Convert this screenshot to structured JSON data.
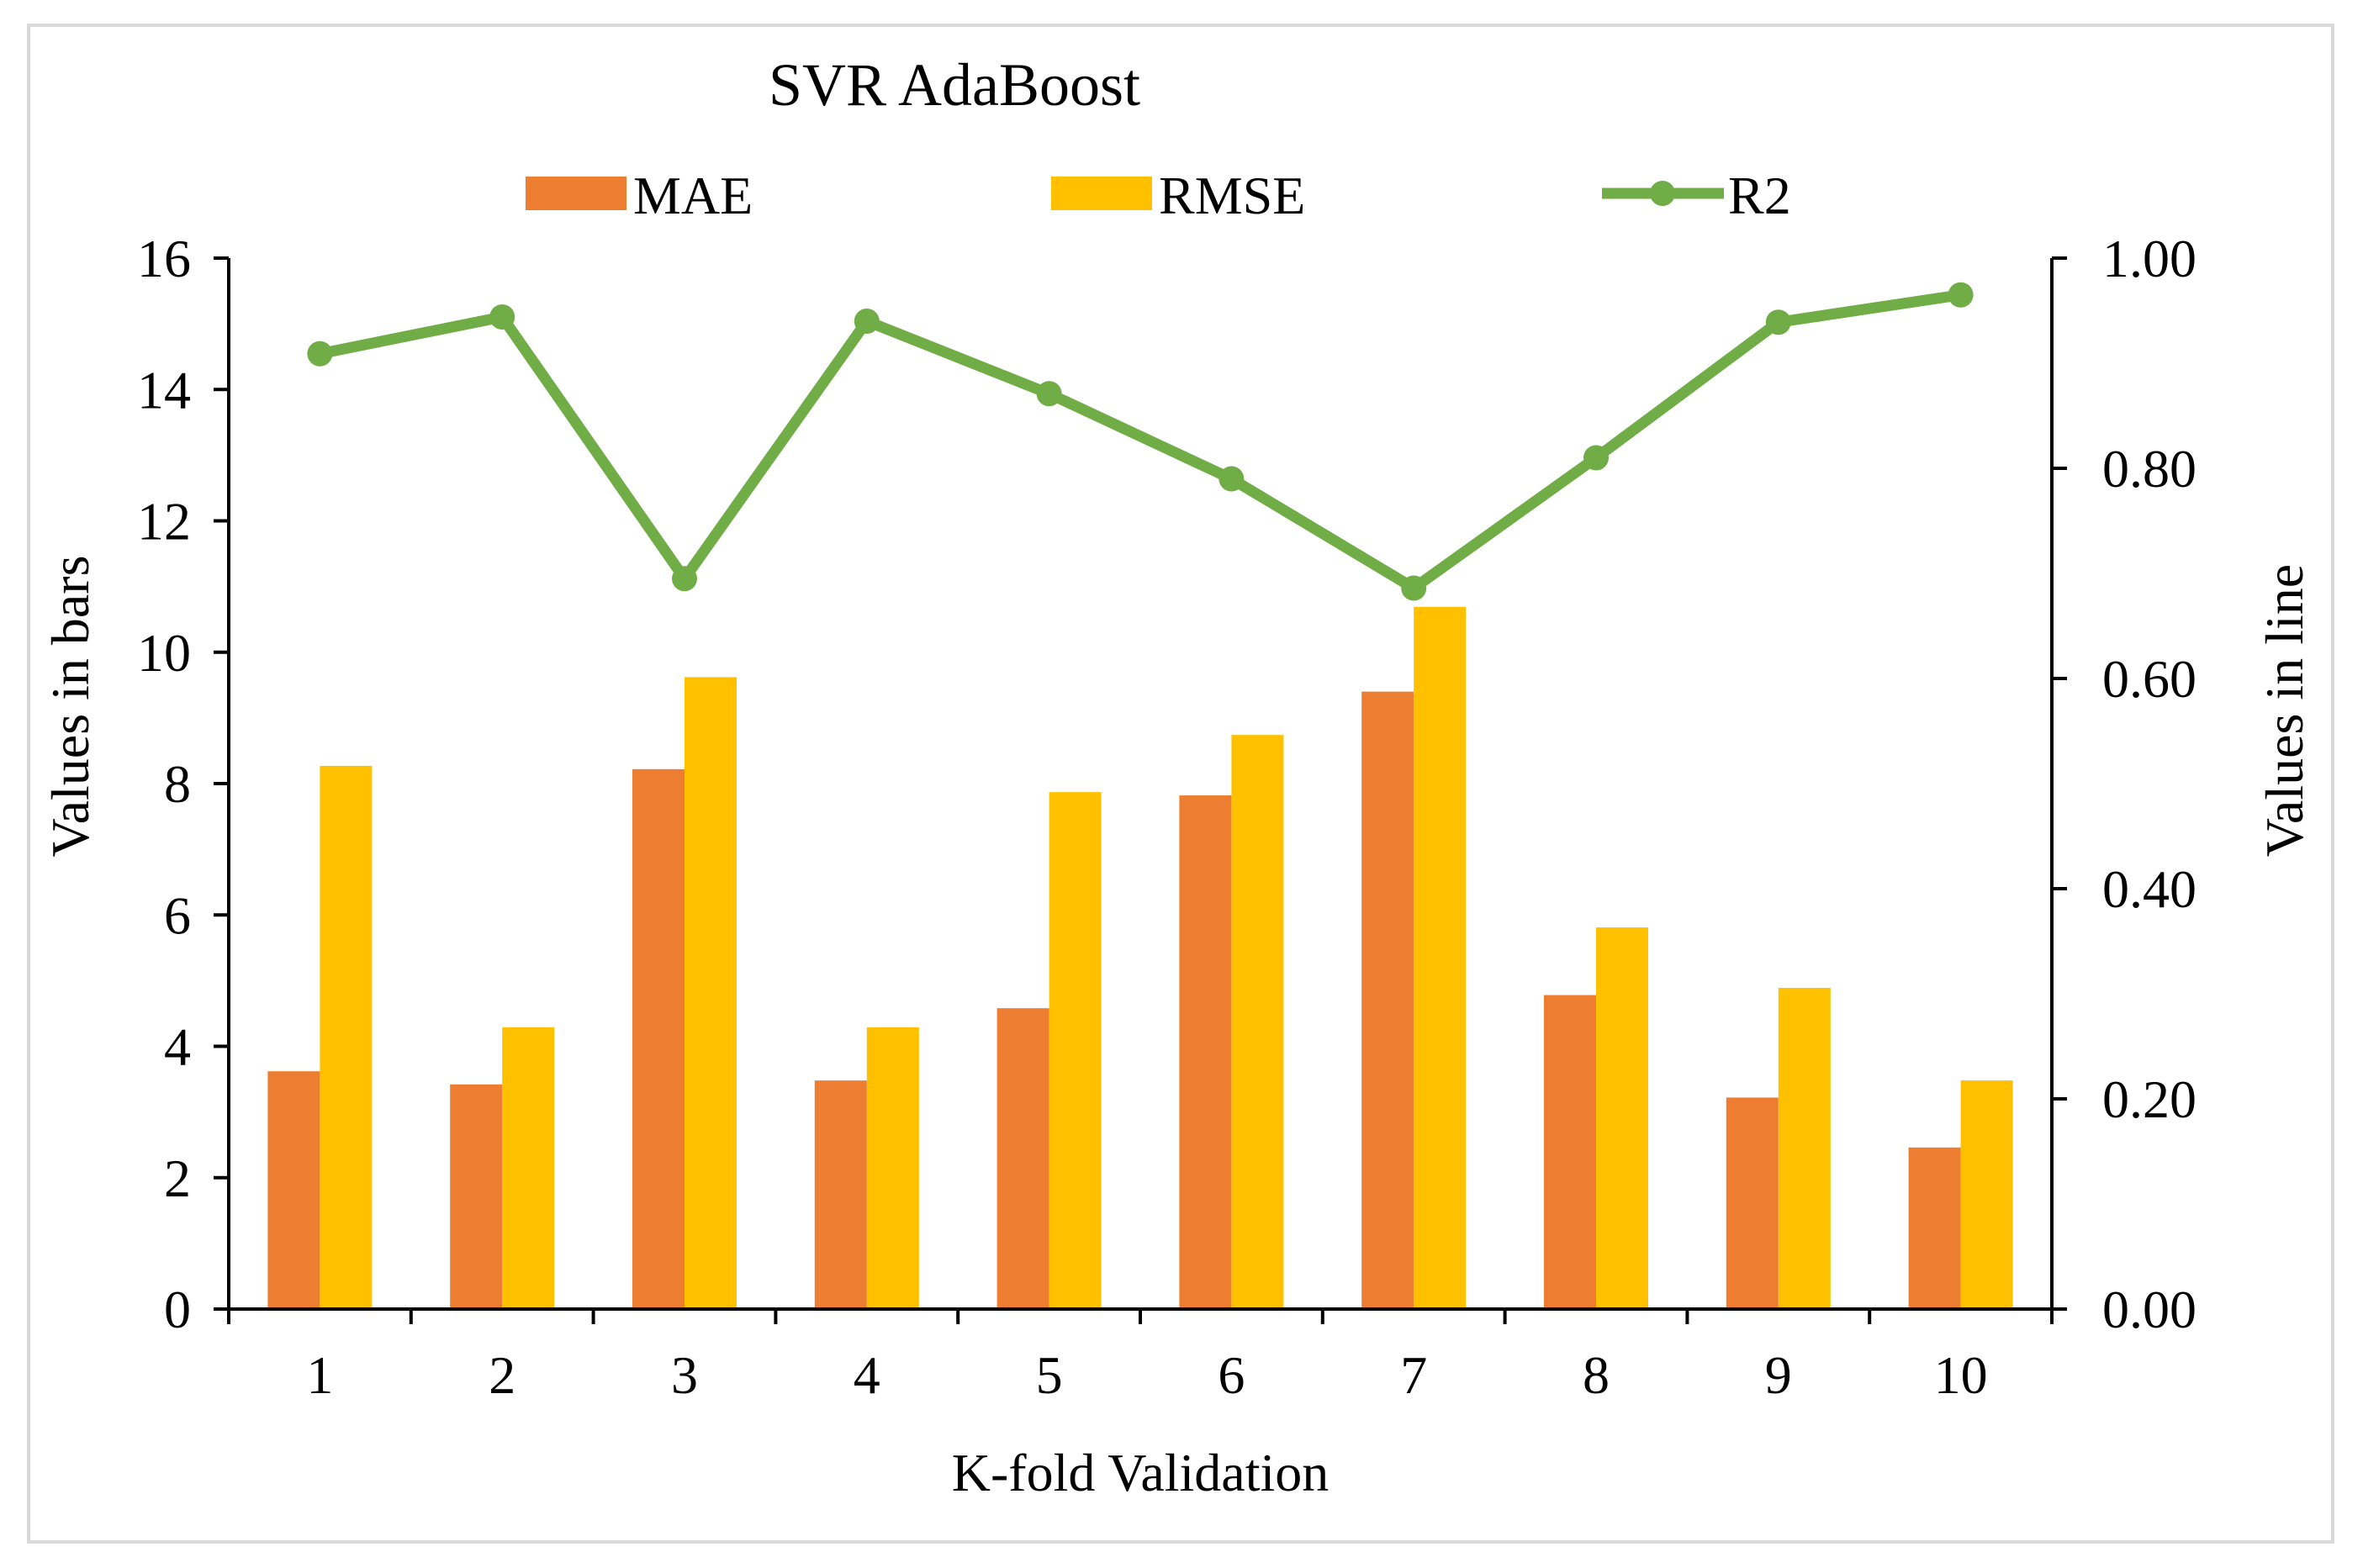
{
  "chart_data": {
    "type": "bar",
    "title": "SVR AdaBoost",
    "xlabel": "K-fold Validation",
    "ylabel": "Values in bars",
    "y2label": "Values in line",
    "categories": [
      "1",
      "2",
      "3",
      "4",
      "5",
      "6",
      "7",
      "8",
      "9",
      "10"
    ],
    "ylim": [
      0,
      16
    ],
    "yticks": [
      "0",
      "2",
      "4",
      "6",
      "8",
      "10",
      "12",
      "14",
      "16"
    ],
    "y2lim": [
      0,
      1
    ],
    "y2ticks": [
      "0.00",
      "0.20",
      "0.40",
      "0.60",
      "0.80",
      "1.00"
    ],
    "legend_position": "top-center",
    "grid": false,
    "series": [
      {
        "name": "MAE",
        "kind": "bar",
        "axis": "left",
        "color": "#ed7d31",
        "values": [
          3.62,
          3.42,
          8.22,
          3.48,
          4.58,
          7.82,
          9.4,
          4.78,
          3.22,
          2.46
        ]
      },
      {
        "name": "RMSE",
        "kind": "bar",
        "axis": "left",
        "color": "#ffc000",
        "values": [
          8.27,
          4.29,
          9.62,
          4.29,
          7.87,
          8.74,
          10.69,
          5.81,
          4.89,
          3.48
        ]
      },
      {
        "name": "R2",
        "kind": "line",
        "axis": "right",
        "color": "#70ad47",
        "values": [
          0.909,
          0.944,
          0.695,
          0.94,
          0.871,
          0.79,
          0.686,
          0.81,
          0.939,
          0.965
        ]
      }
    ]
  }
}
